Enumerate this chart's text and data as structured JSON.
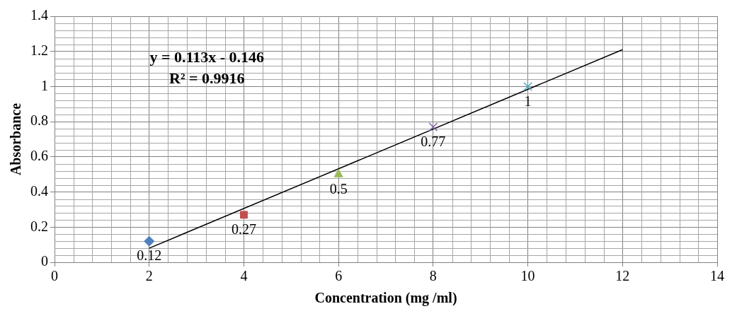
{
  "chart_data": {
    "type": "scatter",
    "xlabel": "Concentration (mg /ml)",
    "ylabel": "Absorbance",
    "xlim": [
      0,
      14
    ],
    "xticks": [
      0,
      2,
      4,
      6,
      8,
      10,
      12,
      14
    ],
    "ylim": [
      0,
      1.4
    ],
    "yticks": [
      0,
      0.2,
      0.4,
      0.6,
      0.8,
      1,
      1.2,
      1.4
    ],
    "grid": true,
    "annotations": [
      "y = 0.113x - 0.146",
      "R² = 0.9916"
    ],
    "series": [
      {
        "color": "#4f81bd",
        "marker": "diamond",
        "x": [
          2
        ],
        "values": [
          0.12
        ],
        "value_labels": [
          "0.12"
        ]
      },
      {
        "color": "#c0504d",
        "marker": "square",
        "x": [
          4
        ],
        "values": [
          0.27
        ],
        "value_labels": [
          "0.27"
        ]
      },
      {
        "color": "#9bbb59",
        "marker": "triangle",
        "x": [
          6
        ],
        "values": [
          0.5
        ],
        "value_labels": [
          "0.5"
        ]
      },
      {
        "color": "#8064a2",
        "marker": "cross",
        "x": [
          8
        ],
        "values": [
          0.77
        ],
        "value_labels": [
          "0.77"
        ]
      },
      {
        "color": "#4bacc6",
        "marker": "cross",
        "x": [
          10
        ],
        "values": [
          1
        ],
        "value_labels": [
          "1"
        ]
      },
      {
        "type": "line",
        "color": "#000000",
        "x": [
          2,
          12
        ],
        "values": [
          0.08,
          1.21
        ]
      }
    ]
  }
}
